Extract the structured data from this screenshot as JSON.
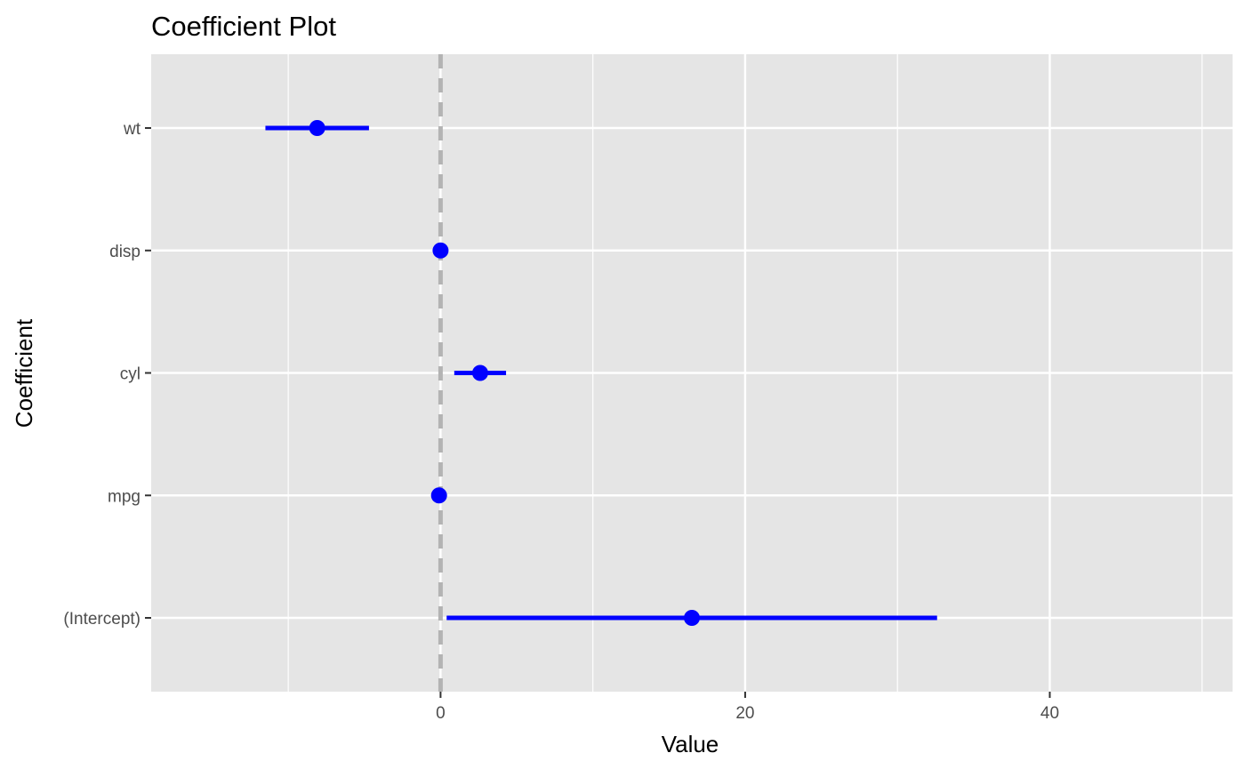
{
  "chart_data": {
    "type": "coefficient-plot",
    "title": "Coefficient Plot",
    "xlabel": "Value",
    "ylabel": "Coefficient",
    "xlim": [
      -19,
      52
    ],
    "x_ticks": [
      0,
      20,
      40
    ],
    "x_minor_ticks": [
      -10,
      10,
      30,
      50
    ],
    "categories": [
      "(Intercept)",
      "mpg",
      "cyl",
      "disp",
      "wt"
    ],
    "estimates": [
      16.5,
      -0.1,
      2.6,
      0.0,
      -8.1
    ],
    "ci_low": [
      0.4,
      -0.1,
      0.9,
      0.0,
      -11.5
    ],
    "ci_high": [
      32.6,
      -0.1,
      4.3,
      0.0,
      -4.7
    ],
    "reference_line": 0,
    "grid": true,
    "colors": {
      "point": "#0000ff",
      "interval": "#0000ff",
      "panel": "#e5e5e5",
      "grid": "#ffffff",
      "reference": "#b3b3b3"
    }
  }
}
